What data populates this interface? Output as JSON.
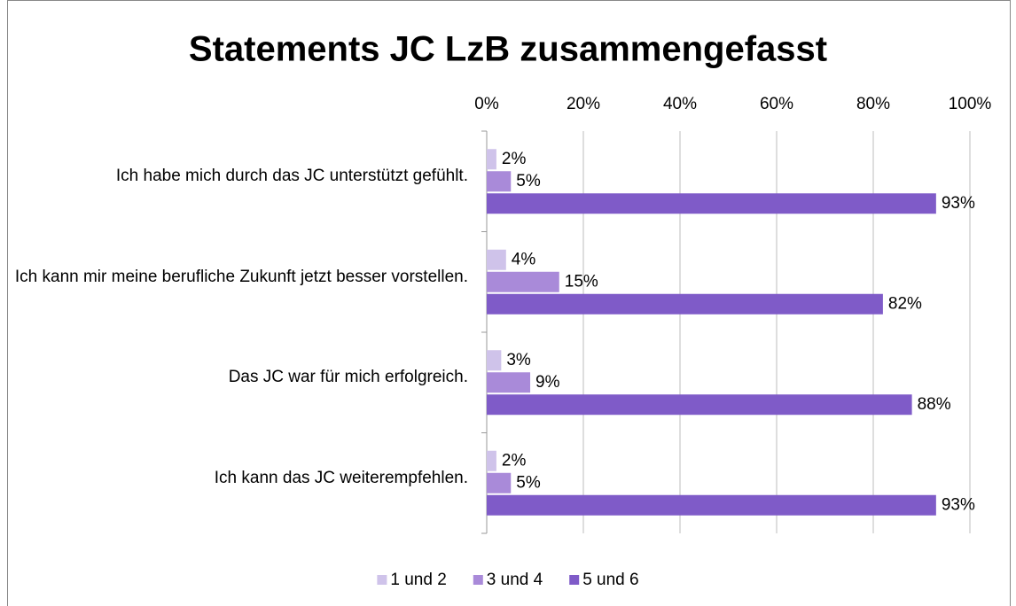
{
  "chart_data": {
    "type": "bar",
    "orientation": "horizontal",
    "title": "Statements JC LzB zusammengefasst",
    "categories": [
      "Ich habe mich durch das JC unterstützt gefühlt.",
      "Ich kann mir meine berufliche Zukunft jetzt besser vorstellen.",
      "Das JC war für mich erfolgreich.",
      "Ich kann das JC weiterempfehlen."
    ],
    "series": [
      {
        "name": "1 und 2",
        "color": "#cfc3ea",
        "values": [
          2,
          4,
          3,
          2
        ],
        "value_labels": [
          "2%",
          "4%",
          "3%",
          "2%"
        ]
      },
      {
        "name": "3 und 4",
        "color": "#a98ad9",
        "values": [
          5,
          15,
          9,
          5
        ],
        "value_labels": [
          "5%",
          "15%",
          "9%",
          "5%"
        ]
      },
      {
        "name": "5 und 6",
        "color": "#7f5bc8",
        "values": [
          93,
          82,
          88,
          93
        ],
        "value_labels": [
          "93%",
          "82%",
          "88%",
          "93%"
        ]
      }
    ],
    "xlim": [
      0,
      100
    ],
    "xticks": [
      {
        "value": 0,
        "label": "0%"
      },
      {
        "value": 20,
        "label": "20%"
      },
      {
        "value": 40,
        "label": "40%"
      },
      {
        "value": 60,
        "label": "60%"
      },
      {
        "value": 80,
        "label": "80%"
      },
      {
        "value": 100,
        "label": "100%"
      }
    ],
    "grid": true,
    "legend": "bottom"
  }
}
